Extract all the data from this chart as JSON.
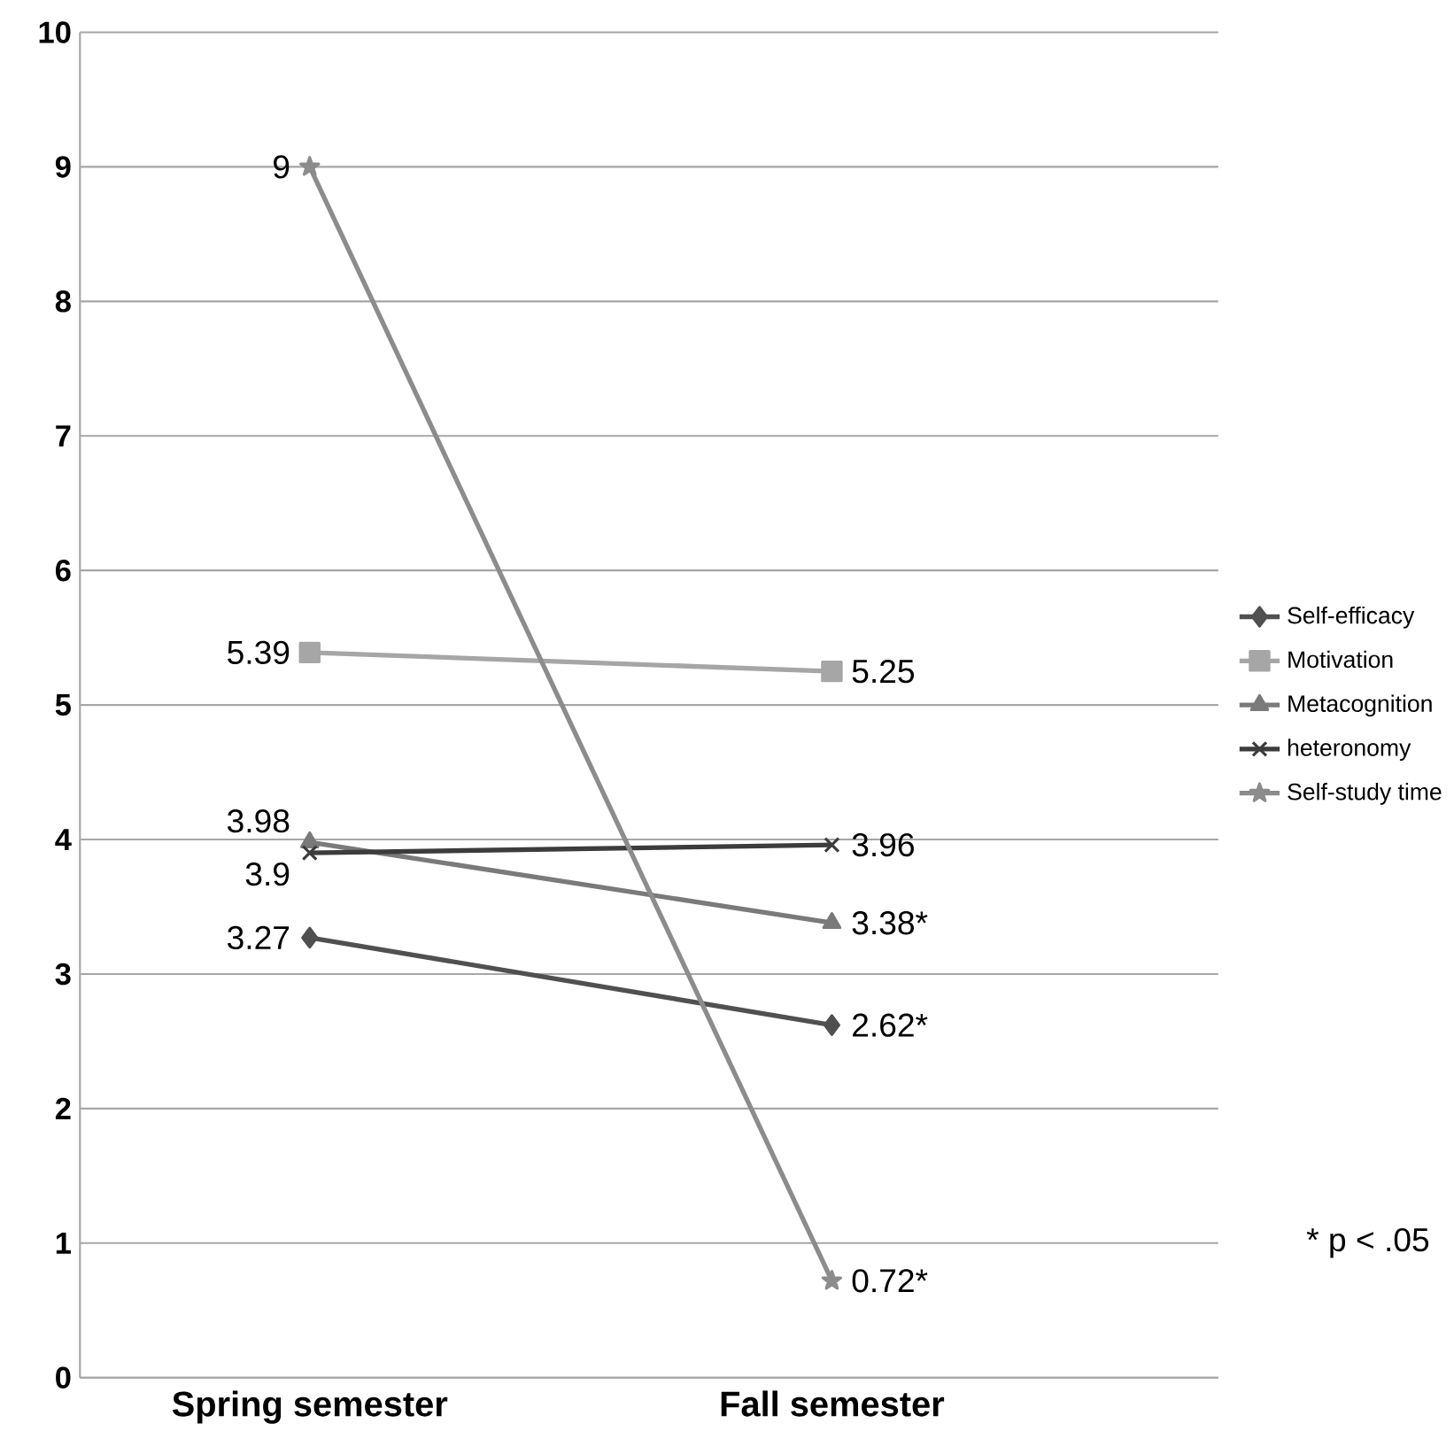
{
  "chart_data": {
    "type": "line",
    "categories": [
      "Spring semester",
      "Fall semester"
    ],
    "series": [
      {
        "name": "Self-efficacy",
        "color": "#505050",
        "marker": "diamond",
        "values": [
          3.27,
          2.62
        ],
        "value_labels": [
          "3.27",
          "2.62*"
        ]
      },
      {
        "name": "Motivation",
        "color": "#a6a6a6",
        "marker": "square",
        "values": [
          5.39,
          5.25
        ],
        "value_labels": [
          "5.39",
          "5.25"
        ]
      },
      {
        "name": "Metacognition",
        "color": "#7a7a7a",
        "marker": "triangle",
        "values": [
          3.98,
          3.38
        ],
        "value_labels": [
          "3.98",
          "3.38*"
        ]
      },
      {
        "name": "heteronomy",
        "color": "#3c3c3c",
        "marker": "cross",
        "values": [
          3.9,
          3.96
        ],
        "value_labels": [
          "3.9",
          "3.96"
        ]
      },
      {
        "name": "Self-study time",
        "color": "#8c8c8c",
        "marker": "star",
        "values": [
          9,
          0.72
        ],
        "value_labels": [
          "9",
          "0.72*"
        ]
      }
    ],
    "ylim": [
      0,
      10
    ],
    "yticks": [
      0,
      1,
      2,
      3,
      4,
      5,
      6,
      7,
      8,
      9,
      10
    ],
    "grid": "y",
    "legend": "right",
    "annotations": [
      "* p < .05"
    ]
  }
}
